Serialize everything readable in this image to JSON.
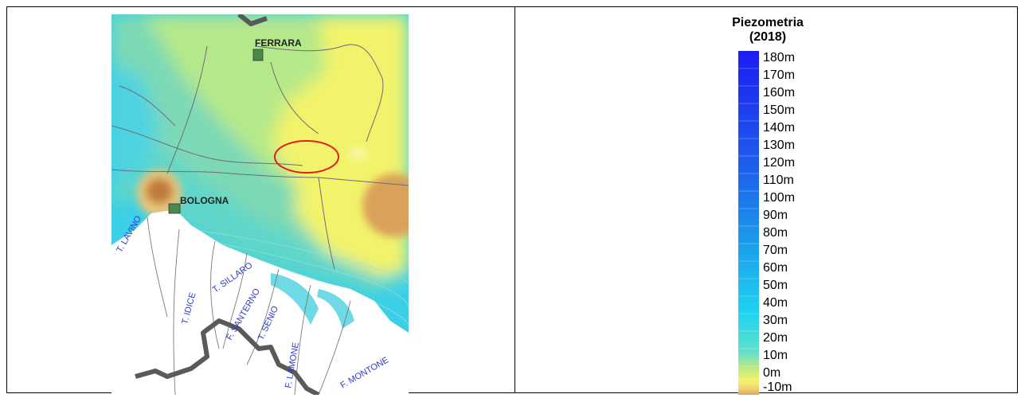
{
  "map": {
    "city_labels": [
      "FERRARA",
      "BOLOGNA"
    ],
    "river_labels": [
      "T. LAVINO",
      "T. IDICE",
      "T. SILLARO",
      "F. SANTERNO",
      "T. SENIO",
      "F. LAMONE",
      "F. MONTONE"
    ],
    "colors": {
      "yellow_low": "#f2f36b",
      "green": "#b5e88a",
      "teal": "#6fd7b8",
      "cyan": "#3cd0e6",
      "orange": "#d9a25a",
      "brown": "#c07b3a",
      "highlight_ellipse": "#e02020",
      "boundary": "#5a5a5a"
    }
  },
  "legend": {
    "title_line1": "Piezometria",
    "title_line2": "(2018)",
    "labels": [
      "180m",
      "170m",
      "160m",
      "150m",
      "140m",
      "130m",
      "120m",
      "110m",
      "100m",
      "90m",
      "80m",
      "70m",
      "60m",
      "50m",
      "40m",
      "30m",
      "20m",
      "10m",
      "0m",
      "-10m"
    ]
  }
}
